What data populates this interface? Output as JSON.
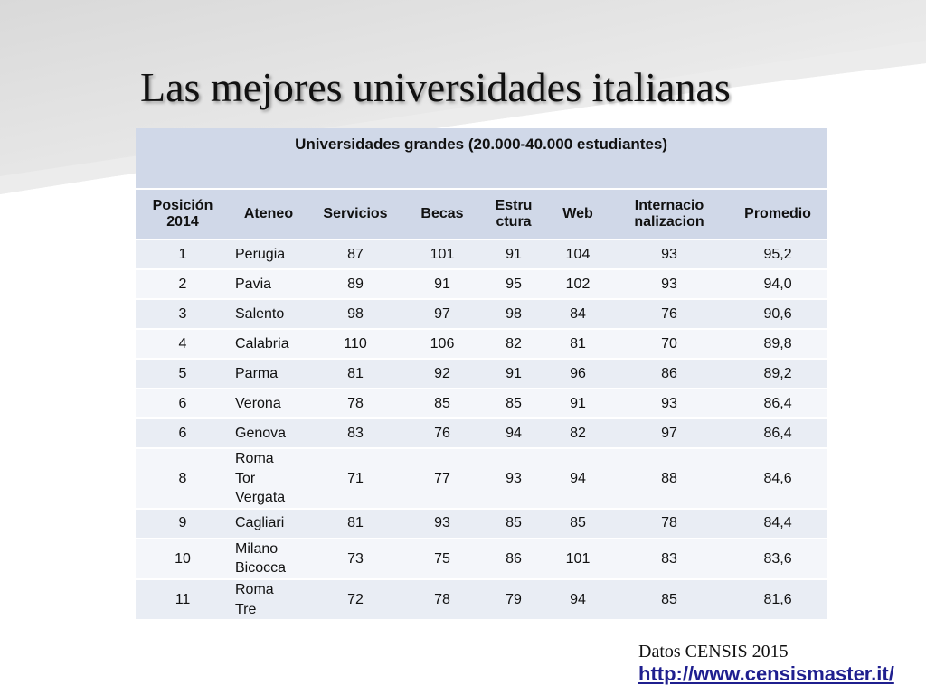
{
  "slide": {
    "title": "Las mejores universidades italianas",
    "source": "Datos CENSIS 2015",
    "link": "http://www.censismaster.it/"
  },
  "table": {
    "caption": "Universidades grandes (20.000-40.000 estudiantes)",
    "headers": [
      "Posición\n2014",
      "Ateneo",
      "Servicios",
      "Becas",
      "Estru\nctura",
      "Web",
      "Internacio\nnalizacion",
      "Promedio"
    ],
    "rows": [
      [
        "1",
        "Perugia",
        "87",
        "101",
        "91",
        "104",
        "93",
        "95,2"
      ],
      [
        "2",
        "Pavia",
        "89",
        "91",
        "95",
        "102",
        "93",
        "94,0"
      ],
      [
        "3",
        "Salento",
        "98",
        "97",
        "98",
        "84",
        "76",
        "90,6"
      ],
      [
        "4",
        "Calabria",
        "110",
        "106",
        "82",
        "81",
        "70",
        "89,8"
      ],
      [
        "5",
        "Parma",
        "81",
        "92",
        "91",
        "96",
        "86",
        "89,2"
      ],
      [
        "6",
        "Verona",
        "78",
        "85",
        "85",
        "91",
        "93",
        "86,4"
      ],
      [
        "6",
        "Genova",
        "83",
        "76",
        "94",
        "82",
        "97",
        "86,4"
      ],
      [
        "8",
        "Roma\nTor\nVergata",
        "71",
        "77",
        "93",
        "94",
        "88",
        "84,6"
      ],
      [
        "9",
        "Cagliari",
        "81",
        "93",
        "85",
        "85",
        "78",
        "84,4"
      ],
      [
        "10",
        "Milano\nBicocca",
        "73",
        "75",
        "86",
        "101",
        "83",
        "83,6"
      ],
      [
        "11",
        "Roma\nTre",
        "72",
        "78",
        "79",
        "94",
        "85",
        "81,6"
      ]
    ]
  },
  "colors": {
    "header_bg": "#d0d8e8",
    "row_odd_bg": "#e9edf4",
    "row_even_bg": "#f4f6fa",
    "link": "#1f1f8f"
  }
}
